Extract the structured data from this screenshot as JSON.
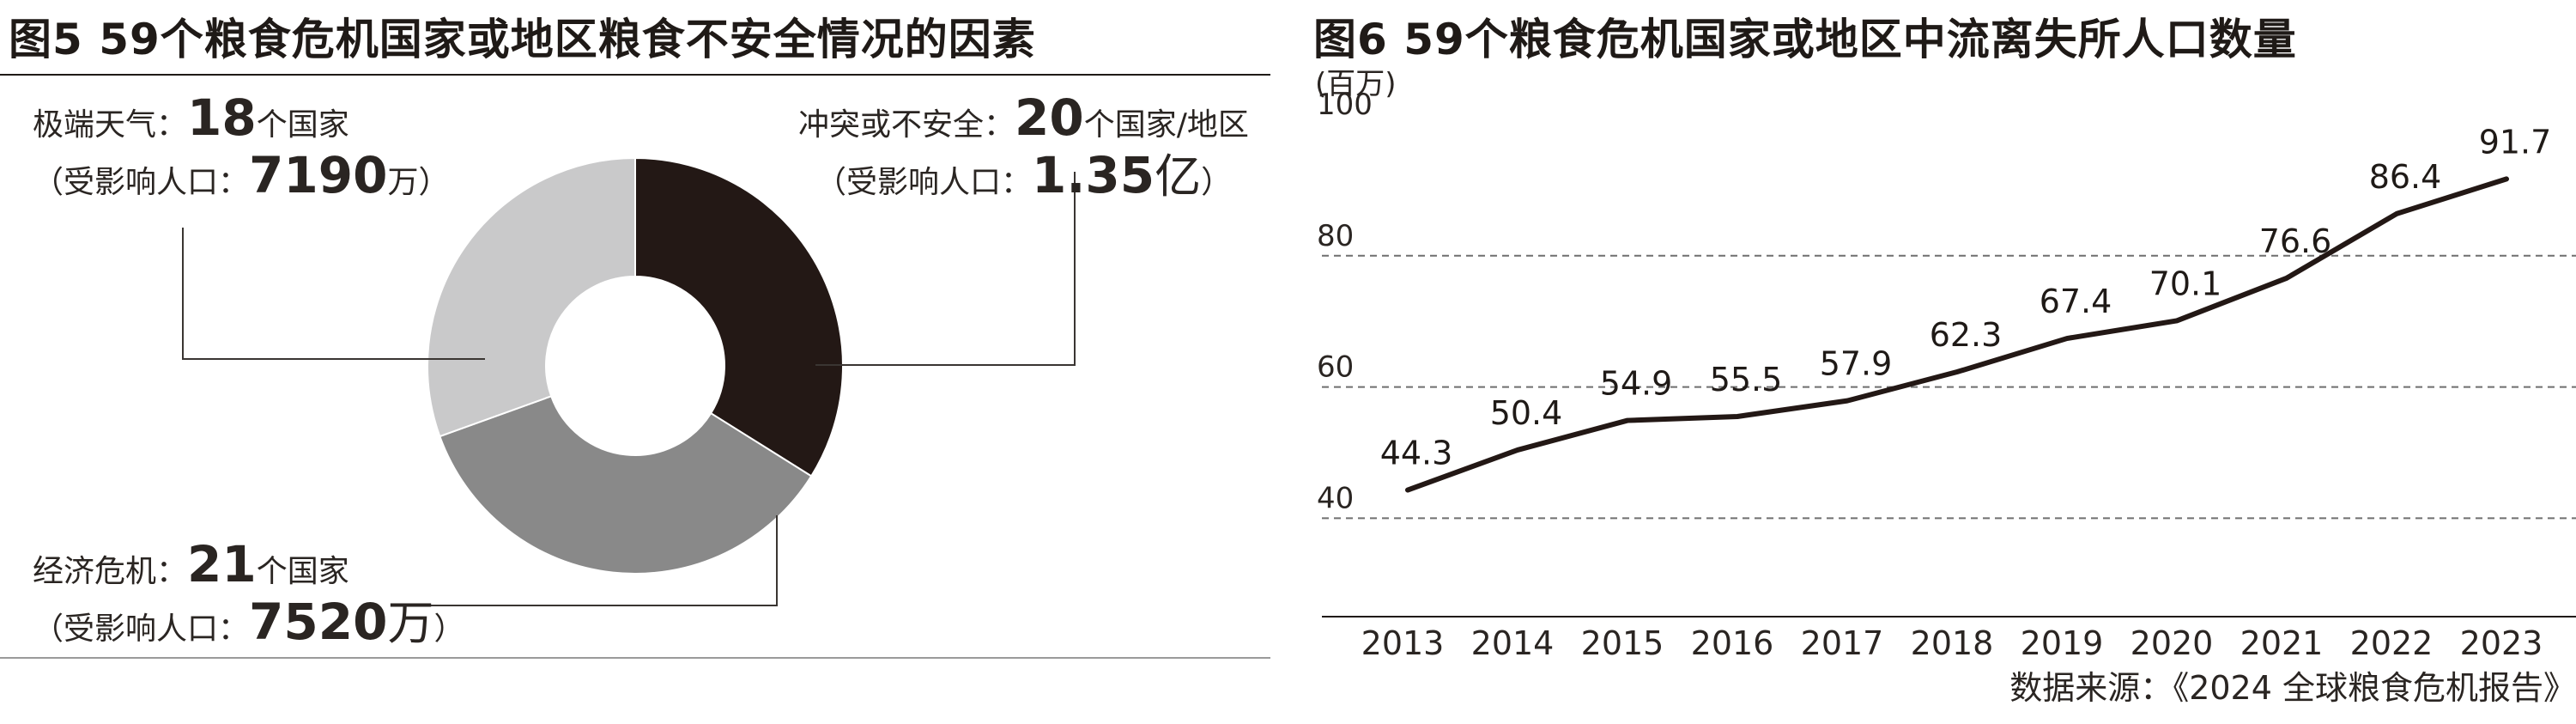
{
  "left": {
    "title": "图5 59个粮食危机国家或地区粮食不安全情况的因素",
    "segments": [
      {
        "name": "冲突或不安全",
        "count": "20",
        "count_unit": "个国家/地区",
        "pop_prefix": "（受影响人口：",
        "pop_value": "1.35",
        "pop_unit": "亿",
        "pop_suffix": "）",
        "color": "#231815"
      },
      {
        "name": "经济危机",
        "count": "21",
        "count_unit": "个国家",
        "pop_prefix": "（受影响人口：",
        "pop_value": "7520",
        "pop_unit": "万",
        "pop_suffix": "）",
        "color": "#898989"
      },
      {
        "name": "极端天气",
        "count": "18",
        "count_unit": "个国家",
        "pop_prefix": "（受影响人口：",
        "pop_value": "7190",
        "pop_unit": "万",
        "pop_suffix": "）",
        "color": "#c9c9ca"
      }
    ],
    "colon": "："
  },
  "right": {
    "title": "图6 59个粮食危机国家或地区中流离失所人口数量",
    "unit": "(百万)",
    "source": "数据来源：《2024 全球粮食危机报告》"
  },
  "chart_data": [
    {
      "type": "pie",
      "title": "图5 59个粮食危机国家或地区粮食不安全情况的因素",
      "donut": true,
      "labels": [
        "冲突或不安全",
        "经济危机",
        "极端天气"
      ],
      "values": [
        20,
        21,
        18
      ],
      "value_unit": "个国家/地区",
      "affected_population": [
        "1.35亿",
        "7520万",
        "7190万"
      ],
      "colors": [
        "#231815",
        "#898989",
        "#c9c9ca"
      ]
    },
    {
      "type": "line",
      "title": "图6 59个粮食危机国家或地区中流离失所人口数量",
      "ylabel": "(百万)",
      "x": [
        "2013",
        "2014",
        "2015",
        "2016",
        "2017",
        "2018",
        "2019",
        "2020",
        "2021",
        "2022",
        "2023"
      ],
      "series": [
        {
          "values": [
            44.3,
            50.4,
            54.9,
            55.5,
            57.9,
            62.3,
            67.4,
            70.1,
            76.6,
            86.4,
            91.7
          ]
        }
      ],
      "data_labels": [
        "44.3",
        "50.4",
        "54.9",
        "55.5",
        "57.9",
        "62.3",
        "67.4",
        "70.1",
        "76.6",
        "86.4",
        "91.7"
      ],
      "yticks": [
        40,
        60,
        80,
        100
      ],
      "ytick_labels": [
        "40",
        "60",
        "80",
        "100"
      ],
      "ylim": [
        25,
        100
      ],
      "grid": true,
      "source": "数据来源：《2024 全球粮食危机报告》",
      "line_color": "#231815"
    }
  ]
}
